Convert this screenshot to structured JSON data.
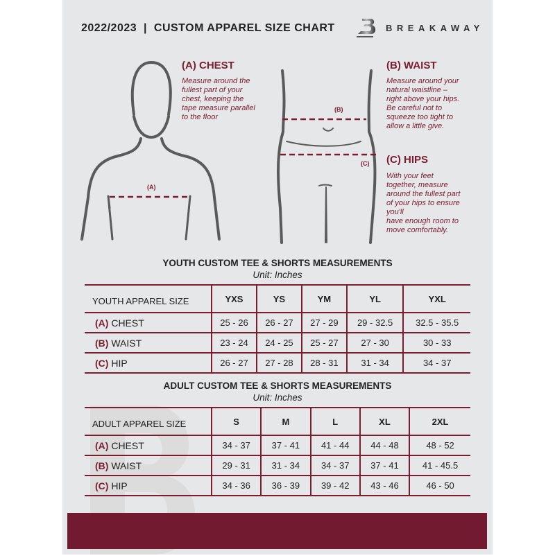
{
  "header": {
    "title": "2022/2023  |  CUSTOM APPAREL SIZE CHART",
    "brand": "BREAKAWAY"
  },
  "colors": {
    "accent": "#7a1c32",
    "background": "#e6e7e8"
  },
  "measures": {
    "chest": {
      "heading": "(A) CHEST",
      "marker": "(A)",
      "text": "Measure around the\nfullest part of your\nchest, keeping the\ntape measure parallel\nto the floor"
    },
    "waist": {
      "heading": "(B) WAIST",
      "marker": "(B)",
      "text": "Measure around your\nnatural waistline –\nright above your hips.\nBe careful not to\nsqueeze too tight to\nallow a little give."
    },
    "hips": {
      "heading": "(C) HIPS",
      "marker": "(C)",
      "text": "With your feet\ntogether, measure\naround the fullest part\nof your hips to ensure\nyou'll\nhave enough room to\nmove comfortably."
    }
  },
  "youth": {
    "title": "YOUTH CUSTOM TEE & SHORTS MEASUREMENTS",
    "unit": "Unit: Inches",
    "header": "YOUTH APPAREL SIZE",
    "sizes": [
      "YXS",
      "YS",
      "YM",
      "YL",
      "YXL"
    ],
    "rows": [
      {
        "label": "(A)",
        "name": "CHEST",
        "values": [
          "25 - 26",
          "26 - 27",
          "27 - 29",
          "29 - 32.5",
          "32.5 - 35.5"
        ]
      },
      {
        "label": "(B)",
        "name": "WAIST",
        "values": [
          "23 - 24",
          "24 - 25",
          "25 - 27",
          "27 - 30",
          "30 - 33"
        ]
      },
      {
        "label": "(C)",
        "name": "HIP",
        "values": [
          "26 - 27",
          "27 - 28",
          "28 - 31",
          "31 - 34",
          "34 - 37"
        ]
      }
    ]
  },
  "adult": {
    "title": "ADULT CUSTOM TEE & SHORTS MEASUREMENTS",
    "unit": "Unit: Inches",
    "header": "ADULT APPAREL SIZE",
    "sizes": [
      "S",
      "M",
      "L",
      "XL",
      "2XL"
    ],
    "rows": [
      {
        "label": "(A)",
        "name": "CHEST",
        "values": [
          "34 - 37",
          "37 - 41",
          "41 - 44",
          "44 - 48",
          "48 - 52"
        ]
      },
      {
        "label": "(B)",
        "name": "WAIST",
        "values": [
          "29 - 31",
          "31 - 34",
          "34 - 37",
          "37 - 41",
          "41 - 45.5"
        ]
      },
      {
        "label": "(C)",
        "name": "HIP",
        "values": [
          "34 - 36",
          "36 - 39",
          "39 - 42",
          "43 - 46",
          "46 - 50"
        ]
      }
    ]
  }
}
